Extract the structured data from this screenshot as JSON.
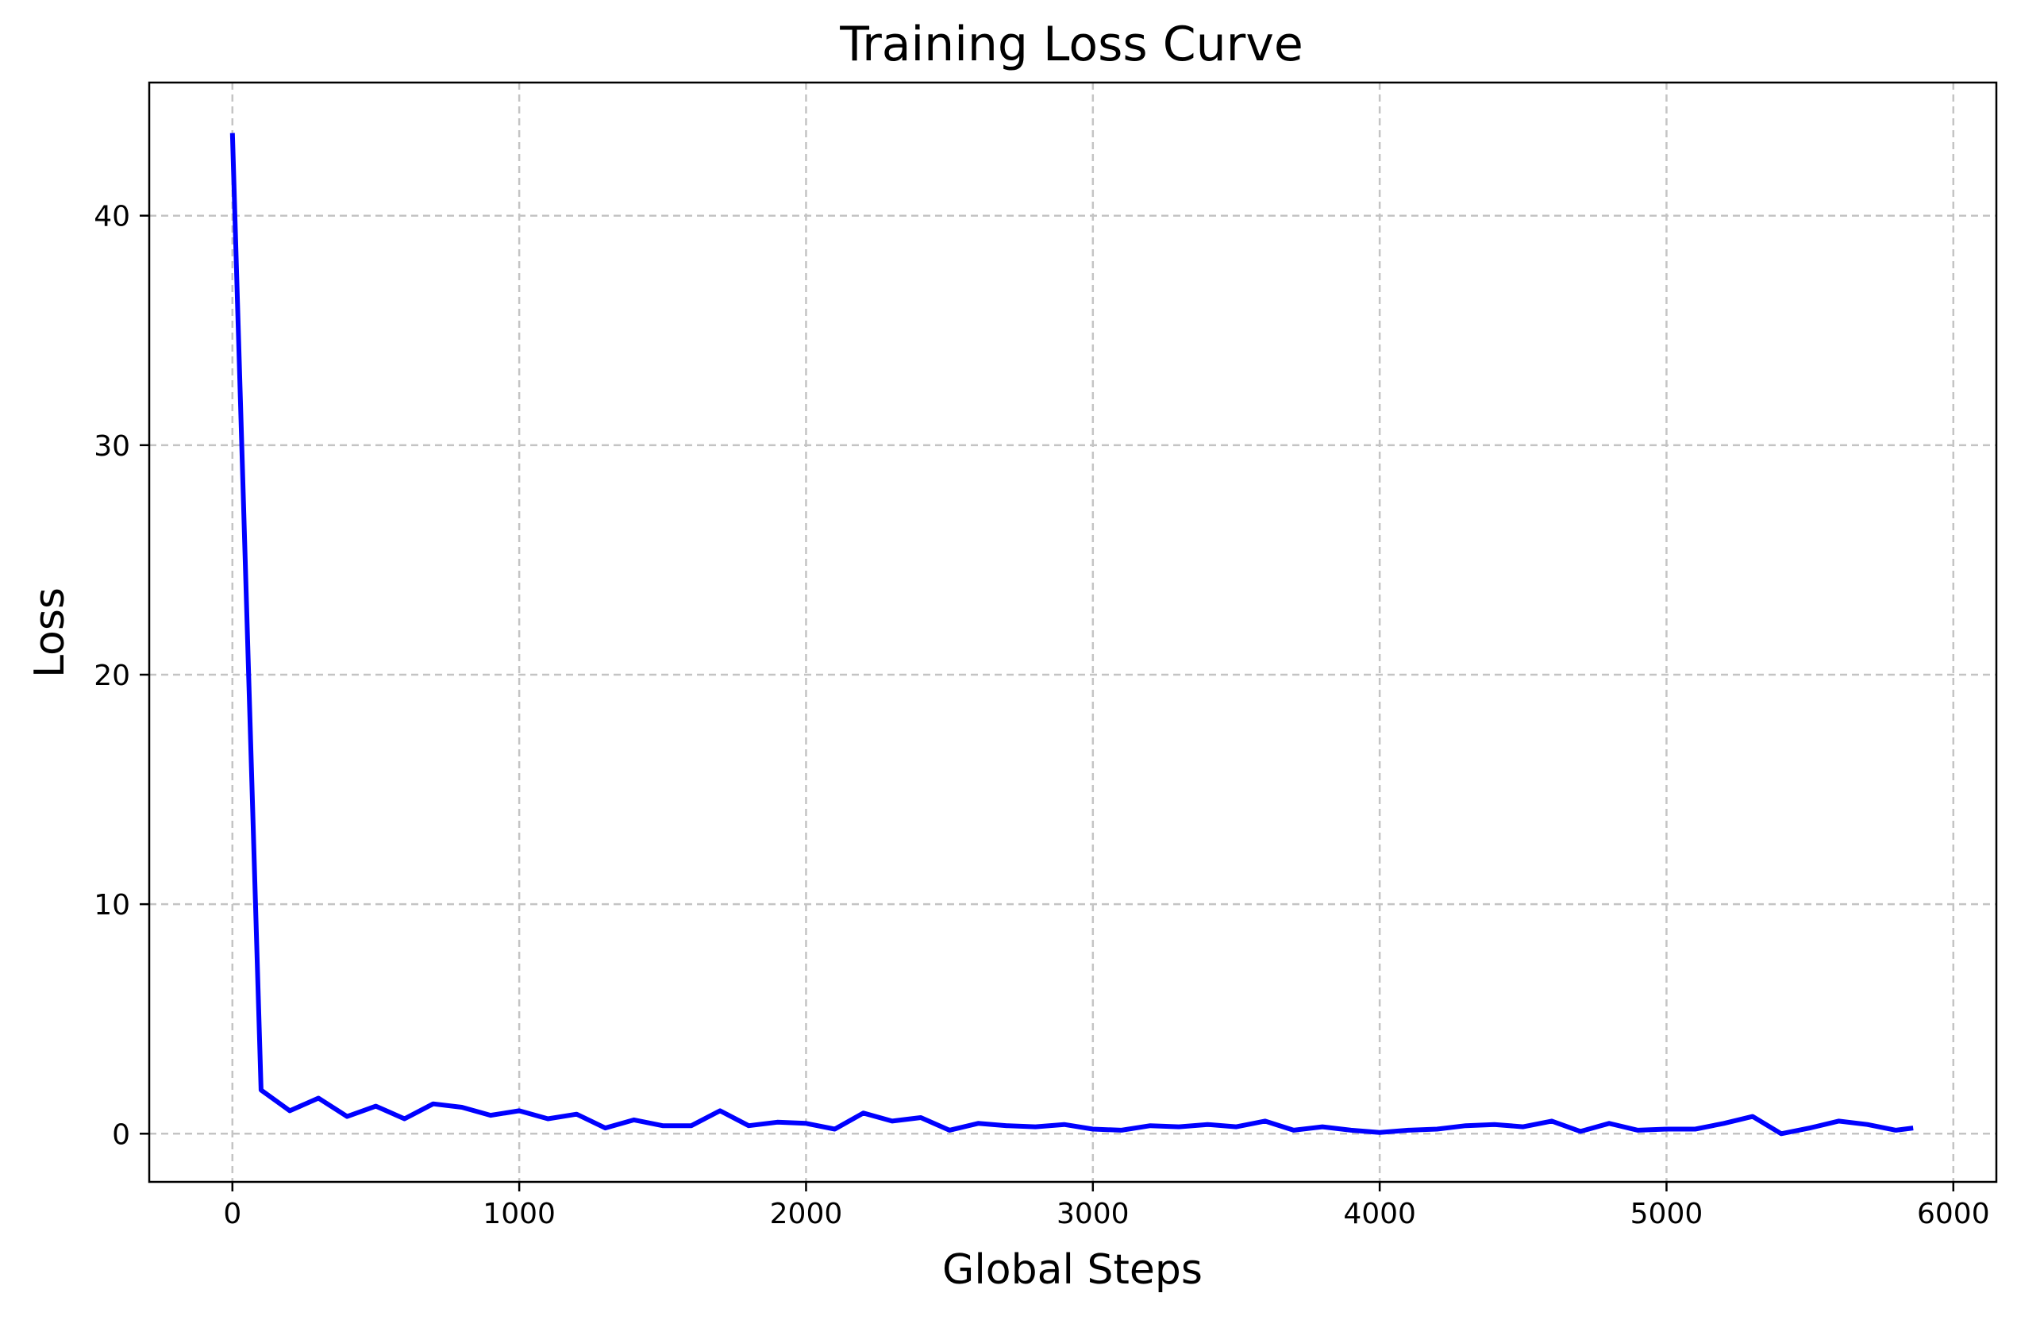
{
  "chart_data": {
    "type": "line",
    "title": "Training Loss Curve",
    "xlabel": "Global Steps",
    "ylabel": "Loss",
    "xlim": [
      -290,
      6150
    ],
    "ylim": [
      -2.1,
      45.8
    ],
    "xticks": [
      0,
      1000,
      2000,
      3000,
      4000,
      5000,
      6000
    ],
    "yticks": [
      0,
      10,
      20,
      30,
      40
    ],
    "grid": true,
    "line_color": "#0000ff",
    "grid_color": "#c4c4c4",
    "series": [
      {
        "x": [
          0,
          100,
          200,
          300,
          400,
          500,
          600,
          700,
          800,
          900,
          1000,
          1100,
          1200,
          1300,
          1400,
          1500,
          1600,
          1700,
          1800,
          1900,
          2000,
          2100,
          2200,
          2300,
          2400,
          2500,
          2600,
          2700,
          2800,
          2900,
          3000,
          3100,
          3200,
          3300,
          3400,
          3500,
          3600,
          3700,
          3800,
          3900,
          4000,
          4100,
          4200,
          4300,
          4400,
          4500,
          4600,
          4700,
          4800,
          4900,
          5000,
          5100,
          5200,
          5300,
          5400,
          5500,
          5600,
          5700,
          5800,
          5860
        ],
        "values": [
          43.6,
          1.9,
          1.0,
          1.55,
          0.75,
          1.2,
          0.65,
          1.3,
          1.15,
          0.8,
          1.0,
          0.65,
          0.85,
          0.25,
          0.6,
          0.35,
          0.35,
          1.0,
          0.35,
          0.5,
          0.45,
          0.2,
          0.9,
          0.55,
          0.7,
          0.15,
          0.45,
          0.35,
          0.3,
          0.4,
          0.2,
          0.15,
          0.35,
          0.3,
          0.4,
          0.3,
          0.55,
          0.15,
          0.3,
          0.15,
          0.05,
          0.15,
          0.2,
          0.35,
          0.4,
          0.3,
          0.55,
          0.1,
          0.45,
          0.15,
          0.2,
          0.2,
          0.45,
          0.75,
          0.0,
          0.25,
          0.55,
          0.4,
          0.15,
          0.25
        ]
      }
    ]
  }
}
